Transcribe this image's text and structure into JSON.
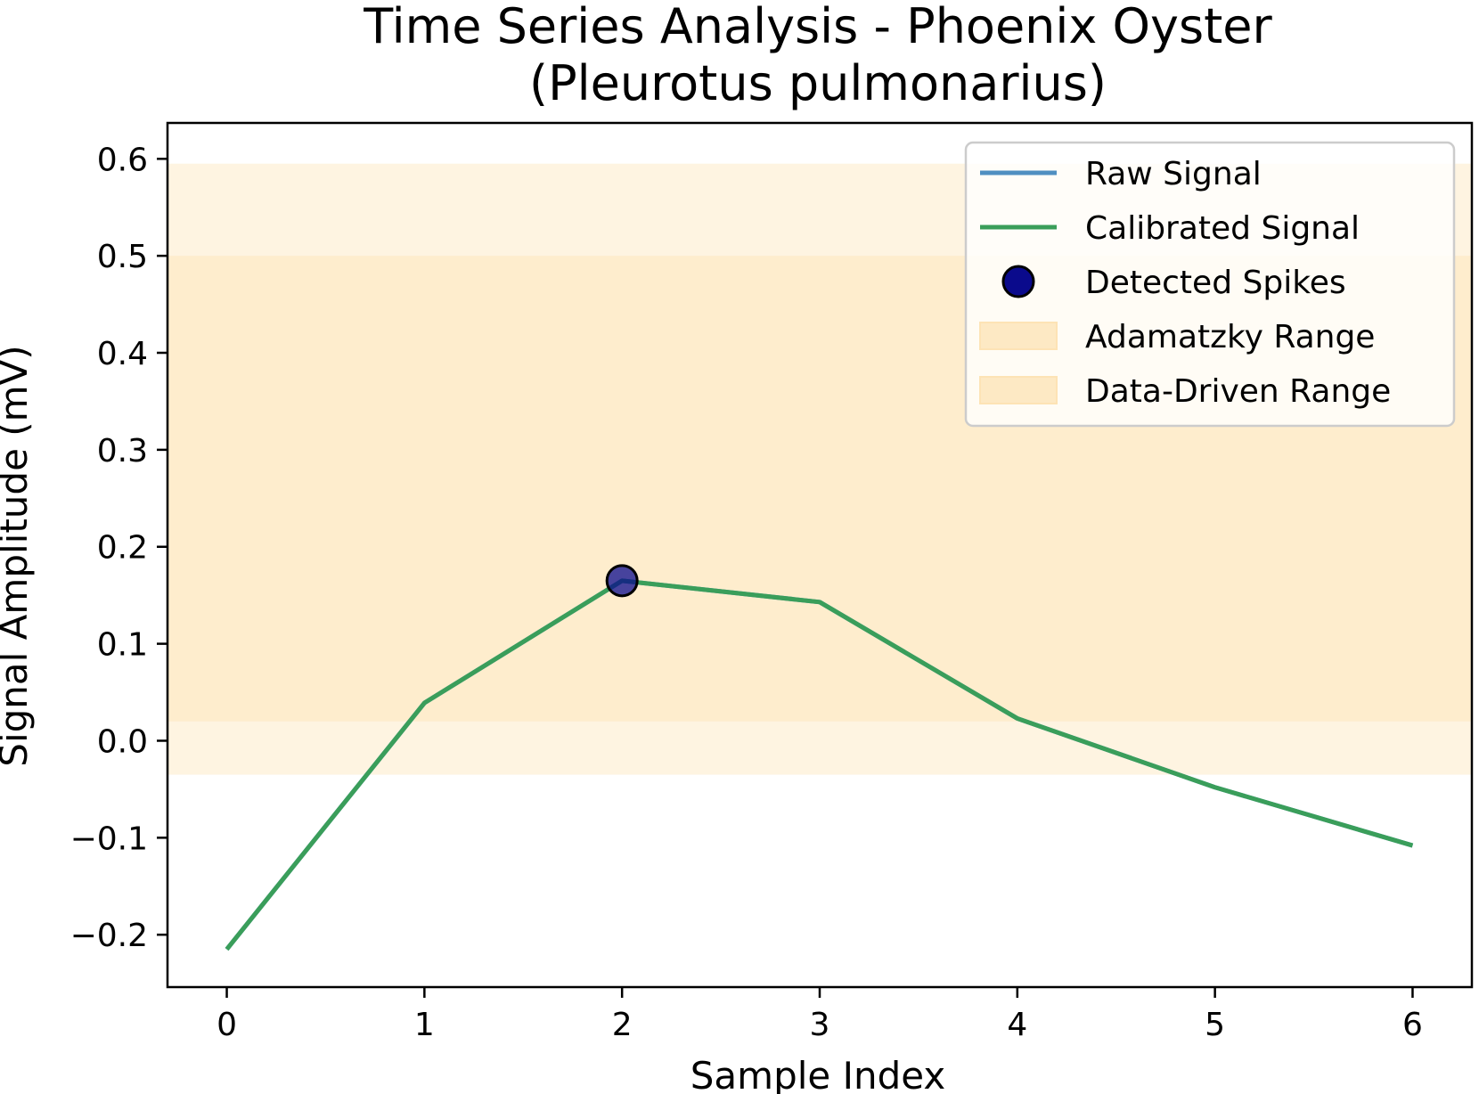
{
  "chart_data": {
    "type": "line",
    "title_lines": [
      "Time Series Analysis - Phoenix Oyster",
      "(Pleurotus pulmonarius)"
    ],
    "xlabel": "Sample Index",
    "ylabel": "Signal Amplitude (mV)",
    "xlim": [
      -0.3,
      6.3
    ],
    "ylim": [
      -0.254,
      0.637
    ],
    "x_ticks": [
      0,
      1,
      2,
      3,
      4,
      5,
      6
    ],
    "x_tick_labels": [
      "0",
      "1",
      "2",
      "3",
      "4",
      "5",
      "6"
    ],
    "y_ticks": [
      -0.2,
      -0.1,
      0.0,
      0.1,
      0.2,
      0.3,
      0.4,
      0.5,
      0.6
    ],
    "y_tick_labels": [
      "−0.2",
      "−0.1",
      "0.0",
      "0.1",
      "0.2",
      "0.3",
      "0.4",
      "0.5",
      "0.6"
    ],
    "grid": false,
    "legend_position": "upper right",
    "bands": [
      {
        "name": "Adamatzky Range",
        "ymin": -0.035,
        "ymax": 0.595,
        "color": "#fde9c4",
        "opacity": 0.5
      },
      {
        "name": "Data-Driven Range",
        "ymin": 0.02,
        "ymax": 0.5,
        "color": "#fde9c4",
        "opacity": 0.7
      }
    ],
    "series": [
      {
        "name": "Raw Signal",
        "kind": "line",
        "color": "#4f8fc1",
        "x": [
          0,
          1,
          2,
          3,
          4,
          5,
          6
        ],
        "y": [
          -0.215,
          0.039,
          0.165,
          0.143,
          0.023,
          -0.048,
          -0.108
        ]
      },
      {
        "name": "Calibrated Signal",
        "kind": "line",
        "color": "#3a9e5a",
        "x": [
          0,
          1,
          2,
          3,
          4,
          5,
          6
        ],
        "y": [
          -0.215,
          0.039,
          0.165,
          0.143,
          0.023,
          -0.048,
          -0.108
        ]
      },
      {
        "name": "Detected Spikes",
        "kind": "scatter",
        "color": "#0a0a8c",
        "edge_color": "#000000",
        "x": [
          2
        ],
        "y": [
          0.165
        ]
      }
    ],
    "legend": [
      {
        "label": "Raw Signal",
        "kind": "line",
        "color": "#4f8fc1"
      },
      {
        "label": "Calibrated Signal",
        "kind": "line",
        "color": "#3a9e5a"
      },
      {
        "label": "Detected Spikes",
        "kind": "marker",
        "color": "#0a0a8c"
      },
      {
        "label": "Adamatzky Range",
        "kind": "patch",
        "color": "#fde9c4"
      },
      {
        "label": "Data-Driven Range",
        "kind": "patch",
        "color": "#fde9c4"
      }
    ]
  }
}
